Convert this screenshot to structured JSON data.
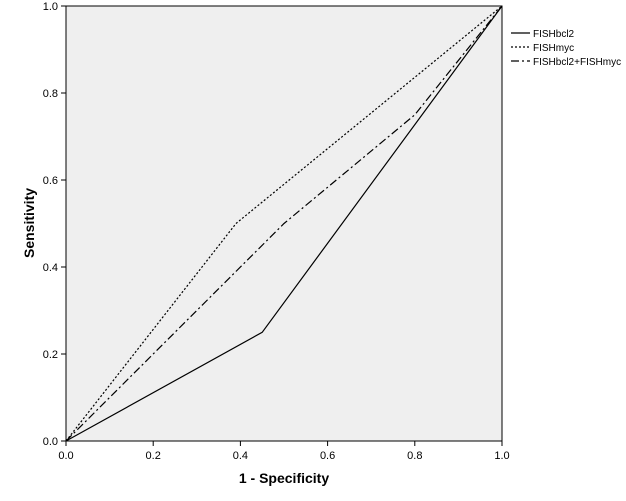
{
  "chart_data": {
    "type": "line",
    "title": "",
    "xlabel": "1 - Specificity",
    "ylabel": "Sensitivity",
    "xlim": [
      0.0,
      1.0
    ],
    "ylim": [
      0.0,
      1.0
    ],
    "grid": false,
    "legend_position": "right",
    "x_ticks": [
      "0.0",
      "0.2",
      "0.4",
      "0.6",
      "0.8",
      "1.0"
    ],
    "y_ticks": [
      "0.0",
      "0.2",
      "0.4",
      "0.6",
      "0.8",
      "1.0"
    ],
    "plot_background": "#efefef",
    "series": [
      {
        "name": "FISHbcl2",
        "style": "solid",
        "points": [
          [
            0.0,
            0.0
          ],
          [
            0.45,
            0.25
          ],
          [
            1.0,
            1.0
          ]
        ]
      },
      {
        "name": "FISHmyc",
        "style": "dotted",
        "points": [
          [
            0.0,
            0.0
          ],
          [
            0.39,
            0.5
          ],
          [
            1.0,
            1.0
          ]
        ]
      },
      {
        "name": "FISHbcl2+FISHmyc",
        "style": "dash-dot",
        "points": [
          [
            0.0,
            0.0
          ],
          [
            0.5,
            0.5
          ],
          [
            0.8,
            0.75
          ],
          [
            1.0,
            1.0
          ]
        ]
      }
    ]
  }
}
